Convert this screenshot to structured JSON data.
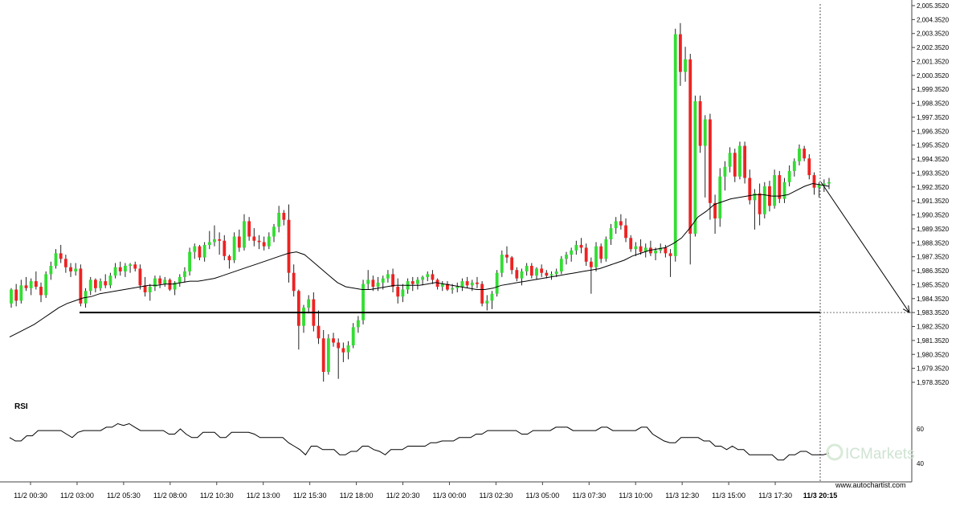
{
  "chart_data": {
    "type": "candlestick",
    "title": "",
    "ylim": [
      1977.9,
      2005.4
    ],
    "price_ticks": [
      "2,005.3520",
      "2,004.3520",
      "2,003.3520",
      "2,002.3520",
      "2,001.3520",
      "2,000.3520",
      "1,999.3520",
      "1,998.3520",
      "1,997.3520",
      "1,996.3520",
      "1,995.3520",
      "1,994.3520",
      "1,993.3520",
      "1,992.3520",
      "1,991.3520",
      "1,990.3520",
      "1,989.3520",
      "1,988.3520",
      "1,987.3520",
      "1,986.3520",
      "1,985.3520",
      "1,984.3520",
      "1,983.3520",
      "1,982.3520",
      "1,981.3520",
      "1,980.3520",
      "1,979.3520",
      "1,978.3520"
    ],
    "x_ticks": [
      "11/2 00:30",
      "11/2 03:00",
      "11/2 05:30",
      "11/2 08:00",
      "11/2 10:30",
      "11/2 13:00",
      "11/2 15:30",
      "11/2 18:00",
      "11/2 20:30",
      "11/3 00:00",
      "11/3 02:30",
      "11/3 05:00",
      "11/3 07:30",
      "11/3 10:00",
      "11/3 12:30",
      "11/3 15:00",
      "11/3 17:30"
    ],
    "current_time_label": "11/3 20:15",
    "support_level": 1983.35,
    "forecast_target": 1983.35,
    "candles": [
      [
        1984.0,
        1985.1,
        1983.7,
        1985.0
      ],
      [
        1985.0,
        1985.4,
        1983.8,
        1984.2
      ],
      [
        1984.2,
        1985.7,
        1984.0,
        1985.3
      ],
      [
        1985.3,
        1985.9,
        1984.9,
        1985.1
      ],
      [
        1985.1,
        1985.8,
        1984.6,
        1985.6
      ],
      [
        1985.6,
        1986.3,
        1985.0,
        1985.2
      ],
      [
        1985.2,
        1985.5,
        1984.1,
        1984.6
      ],
      [
        1984.6,
        1986.3,
        1984.4,
        1986.1
      ],
      [
        1986.1,
        1987.0,
        1985.7,
        1986.7
      ],
      [
        1986.7,
        1987.9,
        1986.5,
        1987.6
      ],
      [
        1987.6,
        1988.2,
        1986.9,
        1987.2
      ],
      [
        1987.2,
        1987.5,
        1986.2,
        1986.6
      ],
      [
        1986.6,
        1986.9,
        1985.9,
        1986.3
      ],
      [
        1986.3,
        1986.9,
        1986.0,
        1986.5
      ],
      [
        1986.5,
        1986.8,
        1983.8,
        1984.0
      ],
      [
        1984.0,
        1985.1,
        1983.7,
        1984.9
      ],
      [
        1984.9,
        1985.9,
        1984.6,
        1985.7
      ],
      [
        1985.7,
        1985.8,
        1984.8,
        1985.1
      ],
      [
        1985.1,
        1985.8,
        1984.9,
        1985.6
      ],
      [
        1985.6,
        1986.1,
        1985.1,
        1985.3
      ],
      [
        1985.3,
        1986.2,
        1985.1,
        1986.0
      ],
      [
        1986.0,
        1986.9,
        1985.8,
        1986.6
      ],
      [
        1986.6,
        1987.0,
        1986.0,
        1986.3
      ],
      [
        1986.3,
        1986.9,
        1985.9,
        1986.7
      ],
      [
        1986.7,
        1986.9,
        1986.2,
        1986.8
      ],
      [
        1986.8,
        1987.0,
        1986.3,
        1986.5
      ],
      [
        1986.5,
        1986.8,
        1985.0,
        1985.3
      ],
      [
        1985.3,
        1985.9,
        1984.5,
        1984.8
      ],
      [
        1984.8,
        1985.4,
        1984.2,
        1985.2
      ],
      [
        1985.2,
        1986.0,
        1984.9,
        1985.8
      ],
      [
        1985.8,
        1986.0,
        1985.1,
        1985.4
      ],
      [
        1985.4,
        1985.9,
        1985.2,
        1985.7
      ],
      [
        1985.7,
        1985.8,
        1984.9,
        1985.0
      ],
      [
        1985.0,
        1985.6,
        1984.6,
        1985.5
      ],
      [
        1985.5,
        1986.1,
        1985.2,
        1985.9
      ],
      [
        1985.9,
        1986.6,
        1985.5,
        1986.3
      ],
      [
        1986.3,
        1988.0,
        1986.0,
        1987.7
      ],
      [
        1987.7,
        1988.3,
        1987.2,
        1988.1
      ],
      [
        1988.1,
        1988.2,
        1987.1,
        1987.3
      ],
      [
        1987.3,
        1988.4,
        1987.0,
        1988.2
      ],
      [
        1988.2,
        1989.2,
        1987.9,
        1988.4
      ],
      [
        1988.4,
        1989.6,
        1988.1,
        1988.6
      ],
      [
        1988.6,
        1989.1,
        1987.5,
        1988.5
      ],
      [
        1988.5,
        1988.9,
        1987.1,
        1987.4
      ],
      [
        1987.4,
        1987.5,
        1986.5,
        1987.1
      ],
      [
        1987.1,
        1989.1,
        1986.9,
        1988.8
      ],
      [
        1988.8,
        1989.3,
        1987.7,
        1988.0
      ],
      [
        1988.0,
        1990.4,
        1987.8,
        1989.9
      ],
      [
        1989.9,
        1990.2,
        1988.5,
        1988.8
      ],
      [
        1988.8,
        1989.4,
        1988.1,
        1988.5
      ],
      [
        1988.5,
        1988.9,
        1987.9,
        1988.4
      ],
      [
        1988.4,
        1988.8,
        1987.8,
        1988.1
      ],
      [
        1988.1,
        1989.1,
        1987.9,
        1988.8
      ],
      [
        1988.8,
        1989.7,
        1988.4,
        1989.5
      ],
      [
        1989.5,
        1991.0,
        1989.1,
        1990.5
      ],
      [
        1990.5,
        1990.7,
        1989.6,
        1990.0
      ],
      [
        1990.0,
        1991.1,
        1985.5,
        1986.2
      ],
      [
        1986.2,
        1986.8,
        1984.5,
        1984.9
      ],
      [
        1984.9,
        1985.0,
        1980.7,
        1982.4
      ],
      [
        1982.4,
        1983.9,
        1981.9,
        1983.7
      ],
      [
        1983.7,
        1984.6,
        1983.3,
        1984.3
      ],
      [
        1984.3,
        1984.8,
        1982.0,
        1982.4
      ],
      [
        1982.4,
        1983.5,
        1981.1,
        1981.5
      ],
      [
        1981.5,
        1982.1,
        1978.4,
        1979.1
      ],
      [
        1979.1,
        1981.8,
        1978.9,
        1981.5
      ],
      [
        1981.5,
        1981.9,
        1980.9,
        1981.2
      ],
      [
        1981.2,
        1981.5,
        1978.6,
        1980.8
      ],
      [
        1980.8,
        1981.2,
        1979.8,
        1980.5
      ],
      [
        1980.5,
        1981.3,
        1980.0,
        1981.0
      ],
      [
        1981.0,
        1982.6,
        1980.8,
        1982.3
      ],
      [
        1982.3,
        1983.1,
        1981.9,
        1982.8
      ],
      [
        1982.8,
        1985.7,
        1982.5,
        1985.4
      ],
      [
        1985.4,
        1986.4,
        1985.0,
        1985.7
      ],
      [
        1985.7,
        1986.0,
        1984.9,
        1985.2
      ],
      [
        1985.2,
        1985.9,
        1984.9,
        1985.5
      ],
      [
        1985.5,
        1986.0,
        1985.0,
        1985.8
      ],
      [
        1985.8,
        1986.4,
        1985.5,
        1986.1
      ],
      [
        1986.1,
        1986.5,
        1984.8,
        1985.2
      ],
      [
        1985.2,
        1985.8,
        1984.0,
        1984.5
      ],
      [
        1984.5,
        1985.4,
        1984.1,
        1985.0
      ],
      [
        1985.0,
        1985.8,
        1984.7,
        1985.6
      ],
      [
        1985.6,
        1985.9,
        1984.9,
        1985.4
      ],
      [
        1985.4,
        1985.9,
        1985.0,
        1985.7
      ],
      [
        1985.7,
        1986.0,
        1985.3,
        1985.9
      ],
      [
        1985.9,
        1986.3,
        1985.6,
        1986.1
      ],
      [
        1986.1,
        1986.4,
        1985.4,
        1985.7
      ],
      [
        1985.7,
        1985.8,
        1985.0,
        1985.2
      ],
      [
        1985.2,
        1985.6,
        1984.9,
        1985.4
      ],
      [
        1985.4,
        1985.6,
        1984.9,
        1985.0
      ],
      [
        1985.0,
        1985.4,
        1984.7,
        1985.1
      ],
      [
        1985.1,
        1985.5,
        1984.8,
        1985.2
      ],
      [
        1985.2,
        1985.8,
        1984.9,
        1985.6
      ],
      [
        1985.6,
        1985.9,
        1985.1,
        1985.3
      ],
      [
        1985.3,
        1985.7,
        1984.9,
        1985.5
      ],
      [
        1985.5,
        1985.9,
        1985.1,
        1985.4
      ],
      [
        1985.4,
        1985.6,
        1983.8,
        1984.0
      ],
      [
        1984.0,
        1984.6,
        1983.5,
        1984.2
      ],
      [
        1984.2,
        1984.9,
        1983.6,
        1984.7
      ],
      [
        1984.7,
        1986.4,
        1984.5,
        1986.2
      ],
      [
        1986.2,
        1987.8,
        1985.9,
        1987.5
      ],
      [
        1987.5,
        1988.1,
        1986.9,
        1987.3
      ],
      [
        1987.3,
        1987.4,
        1986.1,
        1986.4
      ],
      [
        1986.4,
        1986.6,
        1985.6,
        1985.8
      ],
      [
        1985.8,
        1986.5,
        1985.3,
        1986.3
      ],
      [
        1986.3,
        1986.9,
        1986.0,
        1986.7
      ],
      [
        1986.7,
        1986.9,
        1985.8,
        1986.0
      ],
      [
        1986.0,
        1986.6,
        1985.7,
        1986.5
      ],
      [
        1986.5,
        1986.8,
        1985.9,
        1986.2
      ],
      [
        1986.2,
        1986.4,
        1985.8,
        1986.0
      ],
      [
        1986.0,
        1986.3,
        1985.7,
        1986.1
      ],
      [
        1986.1,
        1986.5,
        1985.9,
        1986.3
      ],
      [
        1986.3,
        1987.4,
        1986.1,
        1987.2
      ],
      [
        1987.2,
        1987.7,
        1986.8,
        1987.5
      ],
      [
        1987.5,
        1988.0,
        1987.0,
        1987.8
      ],
      [
        1987.8,
        1988.5,
        1987.5,
        1988.2
      ],
      [
        1988.2,
        1988.7,
        1987.6,
        1988.0
      ],
      [
        1988.0,
        1988.3,
        1986.7,
        1987.0
      ],
      [
        1987.0,
        1987.3,
        1984.7,
        1986.6
      ],
      [
        1986.6,
        1988.4,
        1986.3,
        1988.1
      ],
      [
        1988.1,
        1988.3,
        1986.9,
        1987.2
      ],
      [
        1987.2,
        1988.8,
        1987.0,
        1988.6
      ],
      [
        1988.6,
        1989.7,
        1988.2,
        1989.4
      ],
      [
        1989.4,
        1990.2,
        1989.0,
        1989.9
      ],
      [
        1989.9,
        1990.4,
        1989.3,
        1989.6
      ],
      [
        1989.6,
        1990.1,
        1988.4,
        1988.7
      ],
      [
        1988.7,
        1988.9,
        1987.7,
        1987.9
      ],
      [
        1987.9,
        1988.4,
        1987.4,
        1988.1
      ],
      [
        1988.1,
        1988.6,
        1987.5,
        1987.7
      ],
      [
        1987.7,
        1988.3,
        1987.3,
        1988.0
      ],
      [
        1988.0,
        1988.5,
        1987.4,
        1987.6
      ],
      [
        1987.6,
        1988.0,
        1987.1,
        1987.8
      ],
      [
        1987.8,
        1988.3,
        1987.6,
        1988.0
      ],
      [
        1988.0,
        1988.2,
        1987.3,
        1987.6
      ],
      [
        1987.6,
        1987.9,
        1985.9,
        1987.4
      ],
      [
        1987.4,
        2003.7,
        1987.0,
        2003.3
      ],
      [
        2003.3,
        2004.1,
        1999.6,
        2000.6
      ],
      [
        2000.6,
        2002.4,
        1999.9,
        2001.5
      ],
      [
        2001.5,
        2001.9,
        1986.8,
        1989.0
      ],
      [
        1989.0,
        1998.9,
        1988.8,
        1998.5
      ],
      [
        1998.5,
        1998.9,
        1994.8,
        1995.3
      ],
      [
        1995.3,
        1997.5,
        1991.6,
        1997.2
      ],
      [
        1997.2,
        1997.6,
        1990.0,
        1991.2
      ],
      [
        1991.2,
        1991.8,
        1989.0,
        1990.1
      ],
      [
        1990.1,
        1993.7,
        1989.5,
        1993.1
      ],
      [
        1993.1,
        1994.2,
        1992.1,
        1993.8
      ],
      [
        1993.8,
        1995.2,
        1993.4,
        1994.8
      ],
      [
        1994.8,
        1995.1,
        1992.7,
        1993.1
      ],
      [
        1993.1,
        1995.6,
        1992.9,
        1995.3
      ],
      [
        1995.3,
        1995.6,
        1992.6,
        1993.0
      ],
      [
        1993.0,
        1993.6,
        1991.1,
        1991.4
      ],
      [
        1991.4,
        1992.2,
        1989.3,
        1991.9
      ],
      [
        1991.9,
        1992.6,
        1989.6,
        1990.4
      ],
      [
        1990.4,
        1992.7,
        1990.1,
        1992.4
      ],
      [
        1992.4,
        1992.8,
        1990.6,
        1991.0
      ],
      [
        1991.0,
        1993.6,
        1990.8,
        1993.2
      ],
      [
        1993.2,
        1993.5,
        1991.2,
        1991.5
      ],
      [
        1991.5,
        1993.0,
        1991.2,
        1992.7
      ],
      [
        1992.7,
        1993.9,
        1992.4,
        1993.5
      ],
      [
        1993.5,
        1994.4,
        1993.1,
        1994.2
      ],
      [
        1994.2,
        1995.4,
        1993.9,
        1995.1
      ],
      [
        1995.1,
        1995.3,
        1994.2,
        1994.4
      ],
      [
        1994.4,
        1994.7,
        1992.9,
        1993.2
      ],
      [
        1993.2,
        1993.4,
        1991.8,
        1992.3
      ],
      [
        1992.3,
        1992.7,
        1991.6,
        1992.5
      ],
      [
        1992.5,
        1992.9,
        1992.0,
        1992.6
      ],
      [
        1992.6,
        1993.0,
        1992.2,
        1992.7
      ]
    ],
    "ma": [
      1981.6,
      1981.9,
      1982.2,
      1982.5,
      1982.9,
      1983.3,
      1983.7,
      1984.0,
      1984.2,
      1984.4,
      1984.5,
      1984.7,
      1984.8,
      1984.9,
      1985.0,
      1985.1,
      1985.2,
      1985.3,
      1985.3,
      1985.4,
      1985.4,
      1985.5,
      1985.6,
      1985.6,
      1985.7,
      1985.8,
      1986.0,
      1986.2,
      1986.4,
      1986.6,
      1986.8,
      1987.0,
      1987.2,
      1987.4,
      1987.6,
      1987.7,
      1987.5,
      1987.0,
      1986.5,
      1986.0,
      1985.5,
      1985.2,
      1985.1,
      1985.0,
      1985.0,
      1985.1,
      1985.2,
      1985.3,
      1985.3,
      1985.3,
      1985.3,
      1985.4,
      1985.5,
      1985.4,
      1985.3,
      1985.2,
      1985.1,
      1985.0,
      1985.0,
      1985.1,
      1985.3,
      1985.4,
      1985.5,
      1985.6,
      1985.7,
      1985.8,
      1985.9,
      1986.0,
      1986.1,
      1986.2,
      1986.3,
      1986.4,
      1986.5,
      1986.7,
      1986.9,
      1987.1,
      1987.4,
      1987.6,
      1987.8,
      1987.9,
      1988.0,
      1988.3,
      1988.7,
      1989.4,
      1990.2,
      1990.6,
      1991.1,
      1991.3,
      1991.5,
      1991.6,
      1991.7,
      1991.8,
      1991.8,
      1991.7,
      1991.7,
      1991.8,
      1992.1,
      1992.4,
      1992.6,
      1992.5,
      1992.4
    ],
    "ma_start_index": 0,
    "rsi": {
      "label": "RSI",
      "ticks": [
        "60",
        "40"
      ],
      "ylim": [
        30,
        75
      ],
      "values": [
        55,
        53,
        53,
        56,
        56,
        59,
        59,
        59,
        59,
        59,
        57,
        55,
        58,
        59,
        59,
        59,
        59,
        61,
        61,
        63,
        62,
        63,
        61,
        59,
        59,
        59,
        59,
        59,
        57,
        57,
        60,
        57,
        55,
        55,
        58,
        58,
        58,
        55,
        55,
        58,
        58,
        58,
        58,
        57,
        55,
        55,
        55,
        55,
        55,
        52,
        50,
        48,
        45,
        50,
        50,
        48,
        48,
        48,
        45,
        45,
        47,
        47,
        50,
        50,
        48,
        47,
        45,
        48,
        48,
        48,
        50,
        50,
        50,
        50,
        52,
        52,
        53,
        53,
        53,
        55,
        55,
        55,
        57,
        57,
        59,
        59,
        59,
        59,
        59,
        59,
        57,
        57,
        59,
        59,
        59,
        59,
        61,
        61,
        61,
        59,
        59,
        59,
        59,
        59,
        61,
        61,
        59,
        59,
        59,
        59,
        59,
        61,
        61,
        57,
        55,
        53,
        52,
        52,
        55,
        55,
        55,
        55,
        53,
        53,
        50,
        50,
        48,
        50,
        48,
        48,
        45,
        45,
        45,
        45,
        45,
        42,
        42,
        45,
        45,
        47,
        47,
        45,
        45,
        45,
        46
      ]
    },
    "watermark": "ICMarkets",
    "credit": "www.autochartist.com"
  }
}
